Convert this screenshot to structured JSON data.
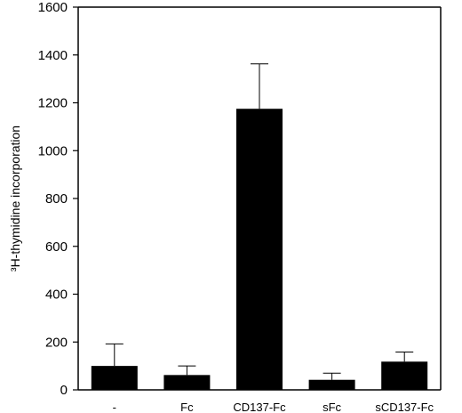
{
  "chart_data": {
    "type": "bar",
    "title": "",
    "ylabel": "³H-thymidine incorporation",
    "xlabel": "",
    "ylim": [
      0,
      1600
    ],
    "yticks": [
      0,
      200,
      400,
      600,
      800,
      1000,
      1200,
      1400,
      1600
    ],
    "categories": [
      "-",
      "Fc",
      "CD137-Fc",
      "sFc",
      "sCD137-Fc"
    ],
    "values": [
      100,
      62,
      1175,
      42,
      118
    ],
    "errors": [
      92,
      38,
      188,
      28,
      40
    ],
    "bar_color": "#000000",
    "grid": false
  }
}
